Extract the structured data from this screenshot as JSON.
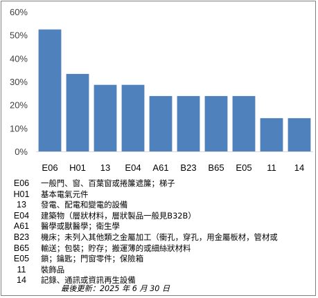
{
  "chart_data": {
    "type": "bar",
    "categories": [
      "E06",
      "H01",
      "13",
      "E04",
      "A61",
      "B23",
      "B65",
      "E05",
      "11",
      "14"
    ],
    "values": [
      52.4,
      33.3,
      28.6,
      28.6,
      23.8,
      23.8,
      23.8,
      23.8,
      14.3,
      14.3
    ],
    "ylim": [
      0,
      60
    ],
    "yticks": [
      "0%",
      "10%",
      "20%",
      "30%",
      "40%",
      "50%",
      "60%"
    ],
    "grid": false,
    "bar_color": "#4F81BD",
    "title": "",
    "xlabel": "",
    "ylabel": ""
  },
  "legend": [
    {
      "code": "E06",
      "desc": "一般門、窗、百葉窗或捲簾遮簾；梯子"
    },
    {
      "code": "H01",
      "desc": "基本電氣元件"
    },
    {
      "code": "13",
      "desc": "發電、配電和變電的設備"
    },
    {
      "code": "E04",
      "desc": "建築物（層狀材料，層狀製品一般見B32B）"
    },
    {
      "code": "A61",
      "desc": "醫學或獸醫學；衛生學"
    },
    {
      "code": "B23",
      "desc": "機床；未列入其他類之金屬加工（衝孔，穿孔，用金屬板材，管材或"
    },
    {
      "code": "B65",
      "desc": "輸送；包裝；貯存；搬運薄的或細絲狀材料"
    },
    {
      "code": "E05",
      "desc": "鎖；鑰匙；門窗零件；保險箱"
    },
    {
      "code": "11",
      "desc": "裝飾品"
    },
    {
      "code": "14",
      "desc": "記錄、通訊或資訊再生設備"
    }
  ],
  "updated_note": "最後更新：2025 年 6 月 30 日"
}
